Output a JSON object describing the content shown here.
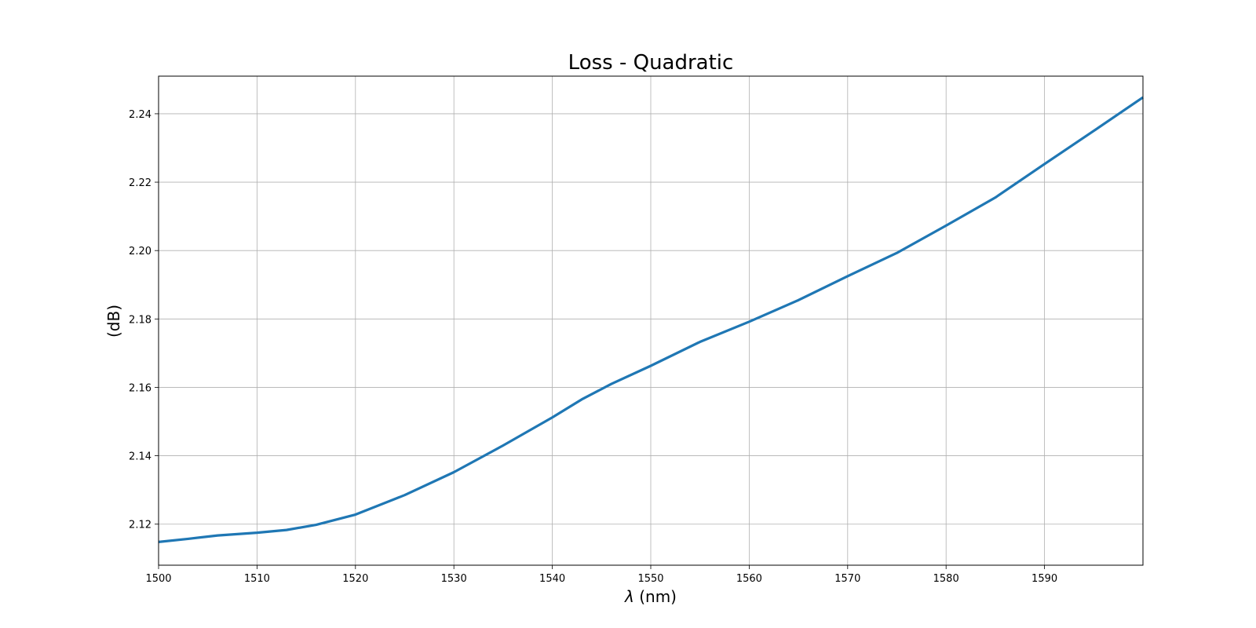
{
  "chart_data": {
    "type": "line",
    "title": "Loss - Quadratic",
    "xlabel_symbol": "λ",
    "xlabel_unit": " (nm)",
    "ylabel": "(dB)",
    "xlim": [
      1500,
      1600
    ],
    "ylim": [
      2.108,
      2.251
    ],
    "xticks": [
      1500,
      1510,
      1520,
      1530,
      1540,
      1550,
      1560,
      1570,
      1580,
      1590
    ],
    "xtick_labels": [
      "1500",
      "1510",
      "1520",
      "1530",
      "1540",
      "1550",
      "1560",
      "1570",
      "1580",
      "1590"
    ],
    "yticks": [
      2.12,
      2.14,
      2.16,
      2.18,
      2.2,
      2.22,
      2.24
    ],
    "ytick_labels": [
      "2.12",
      "2.14",
      "2.16",
      "2.18",
      "2.20",
      "2.22",
      "2.24"
    ],
    "grid": true,
    "series": [
      {
        "color": "#1f77b4",
        "x": [
          1500,
          1503,
          1506,
          1510,
          1513,
          1516,
          1520,
          1525,
          1530,
          1535,
          1540,
          1543,
          1546,
          1550,
          1555,
          1560,
          1565,
          1570,
          1575,
          1580,
          1585,
          1590,
          1595,
          1600
        ],
        "y": [
          2.1148,
          2.1157,
          2.1167,
          2.1175,
          2.1183,
          2.1198,
          2.1228,
          2.1285,
          2.1352,
          2.143,
          2.1512,
          2.1565,
          2.161,
          2.1663,
          2.1733,
          2.1792,
          2.1855,
          2.1925,
          2.1993,
          2.2073,
          2.2155,
          2.2253,
          2.235,
          2.2448
        ]
      }
    ]
  }
}
